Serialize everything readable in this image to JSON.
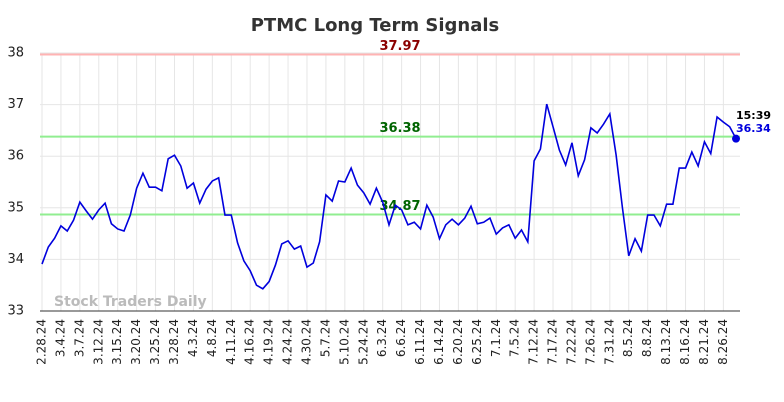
{
  "chart_data": {
    "type": "line",
    "title": "PTMC Long Term Signals",
    "categories": [
      "2.28.24",
      null,
      null,
      "3.4.24",
      null,
      null,
      "3.7.24",
      null,
      null,
      "3.12.24",
      null,
      null,
      "3.15.24",
      null,
      null,
      "3.20.24",
      null,
      null,
      "3.25.24",
      null,
      null,
      "3.28.24",
      null,
      null,
      "4.3.24",
      null,
      null,
      "4.8.24",
      null,
      null,
      "4.11.24",
      null,
      null,
      "4.16.24",
      null,
      null,
      "4.19.24",
      null,
      null,
      "4.24.24",
      null,
      null,
      "4.30.24",
      null,
      null,
      "5.7.24",
      null,
      null,
      "5.10.24",
      null,
      null,
      "5.24.24",
      null,
      null,
      "6.3.24",
      null,
      null,
      "6.6.24",
      null,
      null,
      "6.11.24",
      null,
      null,
      "6.14.24",
      null,
      null,
      "6.20.24",
      null,
      null,
      "6.25.24",
      null,
      null,
      "7.1.24",
      null,
      null,
      "7.5.24",
      null,
      null,
      "7.12.24",
      null,
      null,
      "7.17.24",
      null,
      null,
      "7.22.24",
      null,
      null,
      "7.26.24",
      null,
      null,
      "7.31.24",
      null,
      null,
      "8.5.24",
      null,
      null,
      "8.8.24",
      null,
      null,
      "8.13.24",
      null,
      null,
      "8.16.24",
      null,
      null,
      "8.21.24",
      null,
      null,
      "8.26.24",
      null,
      null
    ],
    "series": [
      {
        "color": "#0000dd",
        "values": [
          33.91,
          34.24,
          34.41,
          34.65,
          34.55,
          34.76,
          35.11,
          34.94,
          34.78,
          34.96,
          35.09,
          34.69,
          34.59,
          34.55,
          34.86,
          35.38,
          35.67,
          35.4,
          35.4,
          35.33,
          35.95,
          36.02,
          35.81,
          35.38,
          35.48,
          35.09,
          35.36,
          35.52,
          35.58,
          34.86,
          34.86,
          34.32,
          33.97,
          33.78,
          33.5,
          33.43,
          33.57,
          33.89,
          34.3,
          34.36,
          34.2,
          34.26,
          33.85,
          33.93,
          34.34,
          35.25,
          35.13,
          35.52,
          35.5,
          35.77,
          35.44,
          35.29,
          35.07,
          35.38,
          35.11,
          34.67,
          35.05,
          34.96,
          34.67,
          34.72,
          34.59,
          35.05,
          34.82,
          34.4,
          34.67,
          34.78,
          34.67,
          34.8,
          35.03,
          34.69,
          34.72,
          34.8,
          34.49,
          34.61,
          34.67,
          34.41,
          34.57,
          34.34,
          35.91,
          36.14,
          37.01,
          36.57,
          36.12,
          35.83,
          36.26,
          35.62,
          35.93,
          36.55,
          36.45,
          36.62,
          36.82,
          36.02,
          35.0,
          34.07,
          34.4,
          34.16,
          34.86,
          34.86,
          34.65,
          35.07,
          35.07,
          35.77,
          35.77,
          36.08,
          35.81,
          36.28,
          36.05,
          36.76,
          36.66,
          36.57,
          36.34
        ]
      }
    ],
    "last_time": "15:39",
    "hlines": [
      {
        "value": 37.97,
        "color": "#ffb3b3",
        "label_color": "#8b0000"
      },
      {
        "value": 36.38,
        "color": "#90ee90",
        "label_color": "#006400"
      },
      {
        "value": 34.87,
        "color": "#90ee90",
        "label_color": "#006400"
      }
    ],
    "watermark": "Stock Traders Daily",
    "ylim": [
      33,
      38
    ],
    "yticks": [
      33,
      34,
      35,
      36,
      37,
      38
    ],
    "grid": true
  }
}
